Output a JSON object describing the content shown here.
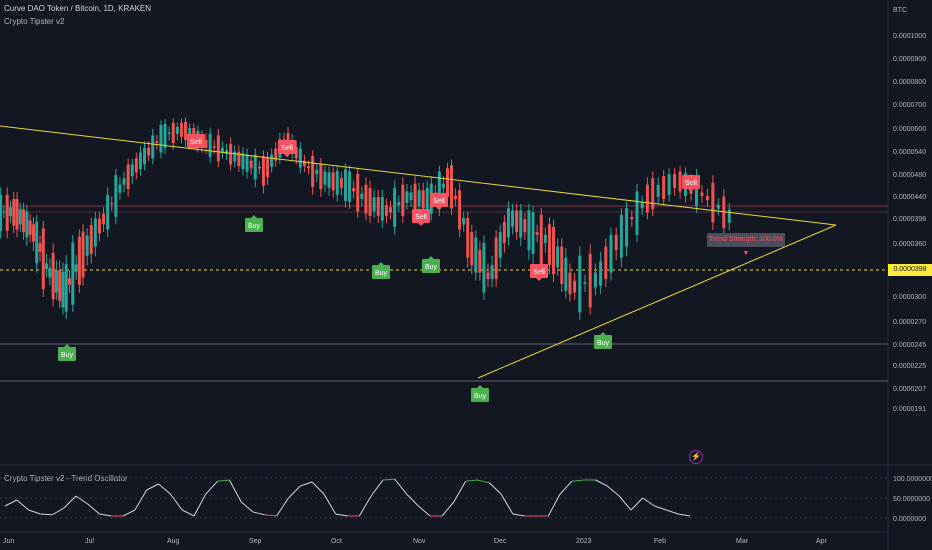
{
  "chart_data": [
    {
      "type": "line",
      "title": "Curve DAO Token / Bitcoin, 1D, KRAKEN",
      "subtitle": "Crypto Tipster v2",
      "currency": "BTC",
      "yaxis": {
        "ticks": [
          "0.0001000",
          "0.0000900",
          "0.0000800",
          "0.0000700",
          "0.0000600",
          "0.0000540",
          "0.0000480",
          "0.0000440",
          "0.0000398",
          "0.0000360",
          "0.0000330",
          "0.0000300",
          "0.0000270",
          "0.0000245",
          "0.0000225",
          "0.0000207",
          "0.0000191"
        ],
        "scale": "log"
      },
      "xaxis": {
        "ticks": [
          "Jun",
          "Jul",
          "Aug",
          "Sep",
          "Oct",
          "Nov",
          "Dec",
          "2023",
          "Feb",
          "Mar",
          "Apr"
        ]
      },
      "current_price": "0.0000398",
      "price_series": [
        [
          "Jun",
          4.1e-05
        ],
        [
          "Jun",
          3.8e-05
        ],
        [
          "Jun",
          3.3e-05
        ],
        [
          "Jun",
          3.05e-05
        ],
        [
          "Jun",
          3.45e-05
        ],
        [
          "Jul",
          3.9e-05
        ],
        [
          "Jul",
          4.6e-05
        ],
        [
          "Jul",
          5.2e-05
        ],
        [
          "Jul",
          5.8e-05
        ],
        [
          "Aug",
          6e-05
        ],
        [
          "Aug",
          5.6e-05
        ],
        [
          "Aug",
          5.4e-05
        ],
        [
          "Aug",
          5.1e-05
        ],
        [
          "Sep",
          4.9e-05
        ],
        [
          "Sep",
          5.7e-05
        ],
        [
          "Sep",
          5e-05
        ],
        [
          "Sep",
          4.7e-05
        ],
        [
          "Oct",
          4.6e-05
        ],
        [
          "Oct",
          4.3e-05
        ],
        [
          "Oct",
          4.1e-05
        ],
        [
          "Oct",
          4.4e-05
        ],
        [
          "Nov",
          4.3e-05
        ],
        [
          "Nov",
          4.7e-05
        ],
        [
          "Nov",
          3.6e-05
        ],
        [
          "Nov",
          3.2e-05
        ],
        [
          "Dec",
          4e-05
        ],
        [
          "Dec",
          3.8e-05
        ],
        [
          "Dec",
          3.6e-05
        ],
        [
          "Dec",
          3.1e-05
        ],
        [
          "2023",
          3.2e-05
        ],
        [
          "2023",
          3.8e-05
        ],
        [
          "2023",
          4.4e-05
        ],
        [
          "Feb",
          4.7e-05
        ],
        [
          "Feb",
          4.4e-05
        ],
        [
          "Feb",
          3.98e-05
        ]
      ],
      "signals": [
        {
          "label": "Sell",
          "at": "Aug",
          "price": 6.4e-05
        },
        {
          "label": "Sell",
          "at": "Sep",
          "price": 6.2e-05
        },
        {
          "label": "Buy",
          "at": "Aug",
          "price": 4.7e-05
        },
        {
          "label": "Buy",
          "at": "Jun",
          "price": 3e-05
        },
        {
          "label": "Buy",
          "at": "Oct",
          "price": 4e-05
        },
        {
          "label": "Buy",
          "at": "Nov",
          "price": 4e-05
        },
        {
          "label": "Sell",
          "at": "Nov",
          "price": 4.9e-05
        },
        {
          "label": "Sell",
          "at": "Nov",
          "price": 5.1e-05
        },
        {
          "label": "Buy",
          "at": "Nov",
          "price": 2.65e-05
        },
        {
          "label": "Sell",
          "at": "Dec",
          "price": 3.85e-05
        },
        {
          "label": "Buy",
          "at": "2023",
          "price": 3.05e-05
        },
        {
          "label": "Sell",
          "at": "Feb",
          "price": 5.3e-05
        }
      ],
      "trend_label": "Trend Strength: 100.0% ▼",
      "colors": {
        "trendline": "#e3d93a",
        "buy": "#4caf50",
        "sell": "#f7525f",
        "up": "#26a69a",
        "down": "#ef5350"
      }
    },
    {
      "type": "line",
      "title": "Crypto Tipster v2 - Trend Oscillator",
      "yaxis": {
        "ticks": [
          "100.0000000",
          "50.0000000",
          "0.0000000"
        ],
        "range": [
          0,
          100
        ]
      },
      "values": [
        30,
        45,
        20,
        10,
        8,
        25,
        55,
        35,
        10,
        5,
        5,
        20,
        70,
        85,
        60,
        20,
        5,
        60,
        92,
        95,
        40,
        15,
        8,
        5,
        50,
        80,
        90,
        60,
        10,
        5,
        5,
        55,
        95,
        97,
        60,
        30,
        5,
        5,
        40,
        92,
        95,
        88,
        60,
        10,
        5,
        5,
        5,
        60,
        92,
        95,
        95,
        80,
        55,
        20,
        50,
        30,
        20,
        10,
        5
      ]
    }
  ]
}
